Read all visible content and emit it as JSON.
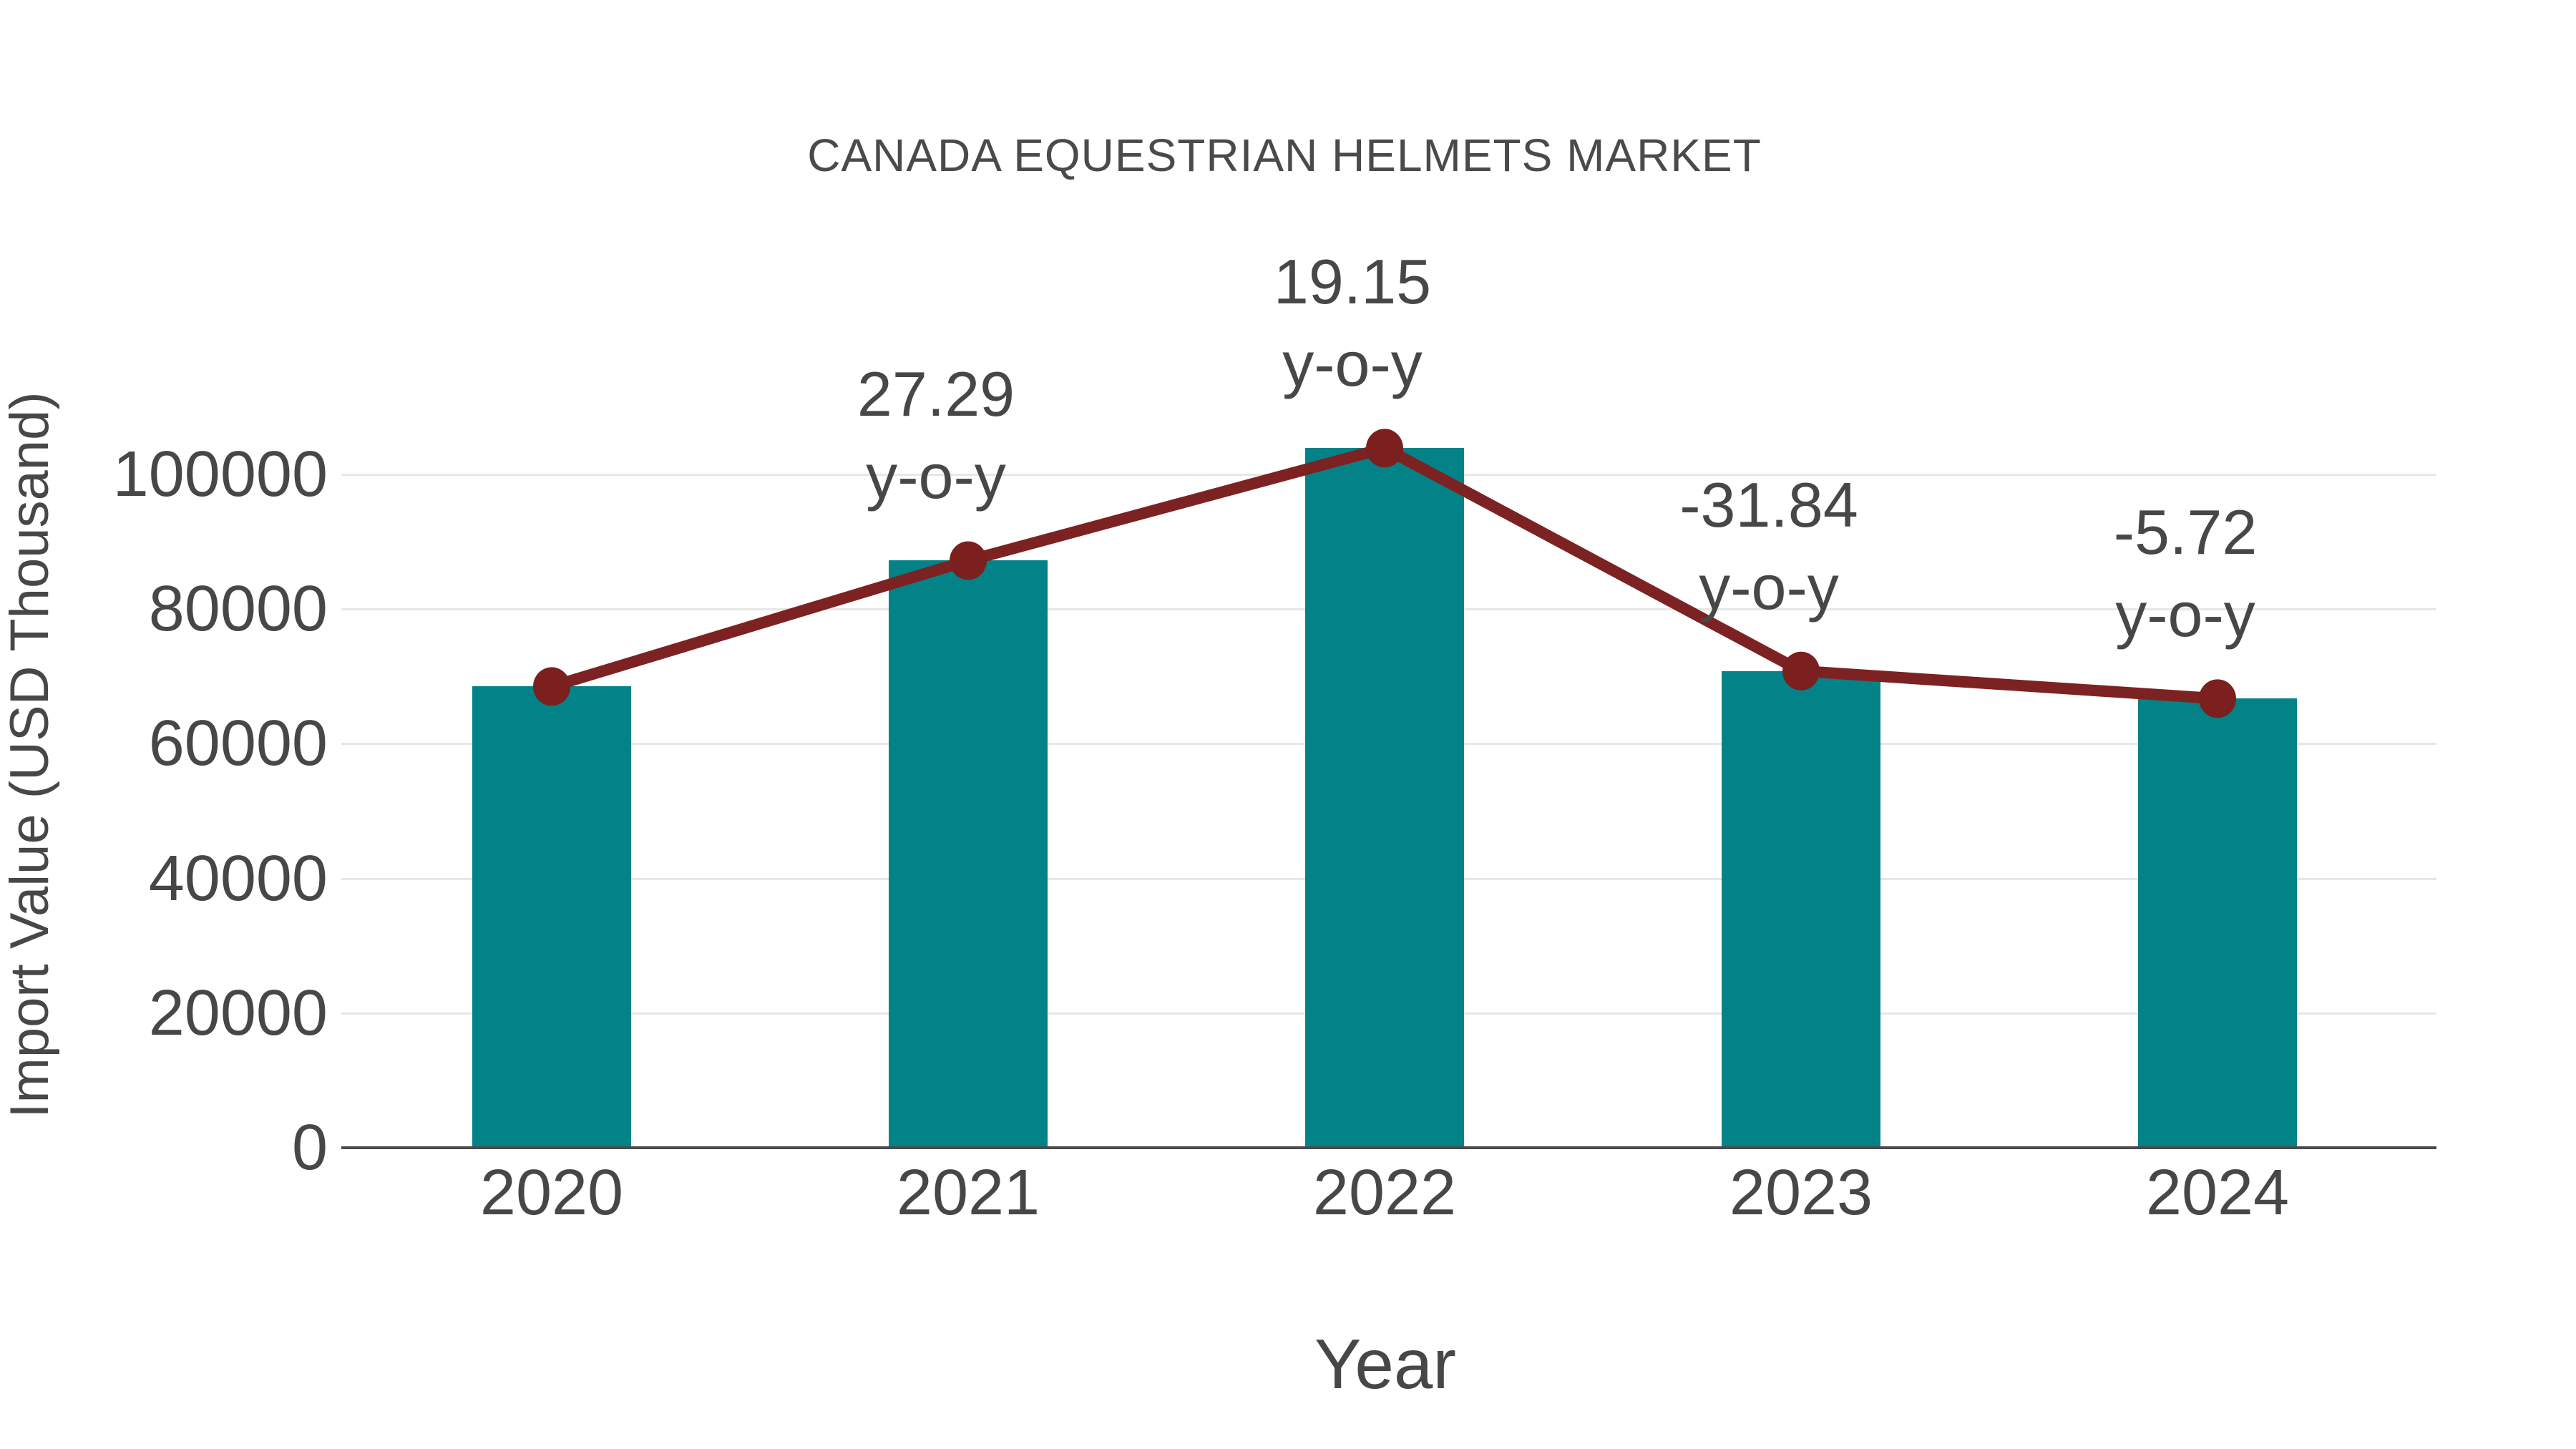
{
  "chart_data": {
    "type": "bar",
    "title": "CANADA EQUESTRIAN HELMETS MARKET",
    "xlabel": "Year",
    "ylabel": "Import Value (USD Thousand)",
    "categories": [
      "2020",
      "2021",
      "2022",
      "2023",
      "2024"
    ],
    "series": [
      {
        "name": "Import Value (USD Thousand)",
        "type": "bar",
        "values": [
          68500,
          87200,
          103900,
          70800,
          66700
        ],
        "color": "#038387"
      },
      {
        "name": "y-o-y growth",
        "type": "line",
        "values": [
          null,
          27.29,
          19.15,
          -31.84,
          -5.72
        ],
        "color": "#7d2222",
        "marker_color": "#7b1f1f"
      }
    ],
    "annotations": [
      {
        "category": "2021",
        "line1": "27.29",
        "line2": "y-o-y"
      },
      {
        "category": "2022",
        "line1": "19.15",
        "line2": "y-o-y"
      },
      {
        "category": "2023",
        "line1": "-31.84",
        "line2": "y-o-y"
      },
      {
        "category": "2024",
        "line1": "-5.72",
        "line2": "y-o-y"
      }
    ],
    "yticks": [
      0,
      20000,
      40000,
      60000,
      80000,
      100000
    ],
    "ylim": [
      0,
      122000
    ],
    "grid": true,
    "legend": false,
    "colors": {
      "bar": "#038387",
      "line": "#7d2222",
      "marker": "#7b1f1f",
      "text": "#474747",
      "gridline": "#e7e7e7",
      "axis": "#4a4a4a",
      "background": "#ffffff"
    }
  }
}
